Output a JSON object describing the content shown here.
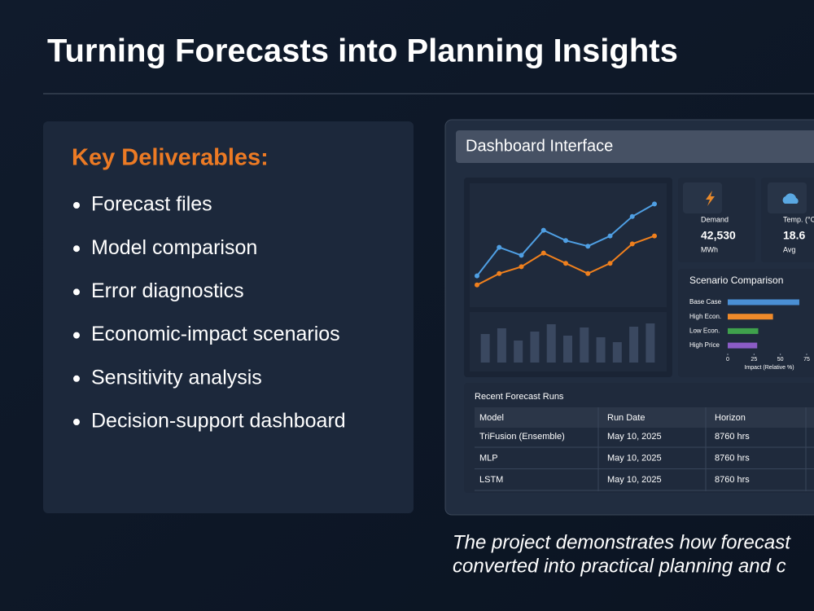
{
  "title": "Turning Forecasts into Planning Insights",
  "deliverables": {
    "heading": "Key Deliverables:",
    "items": [
      "Forecast files",
      "Model comparison",
      "Error diagnostics",
      "Economic-impact scenarios",
      "Sensitivity analysis",
      "Decision-support dashboard"
    ]
  },
  "dashboard": {
    "header": "Dashboard Interface",
    "trend_chart": {
      "type": "line",
      "categories": [
        null,
        null,
        null,
        null,
        null,
        null,
        null,
        null,
        null
      ],
      "series": [
        {
          "color": "#4f9fe3",
          "values": [
            26,
            51,
            44,
            66,
            57,
            52,
            61,
            78,
            89
          ]
        },
        {
          "color": "#f0801d",
          "values": [
            18,
            28,
            34,
            46,
            37,
            28,
            37,
            54,
            61
          ]
        }
      ],
      "ylim": [
        0,
        100
      ]
    },
    "volume_chart": {
      "type": "bar",
      "categories": [
        null,
        null,
        null,
        null,
        null,
        null,
        null,
        null,
        null,
        null,
        null
      ],
      "values": [
        35,
        42,
        27,
        38,
        47,
        33,
        43,
        31,
        25,
        44,
        48
      ],
      "color": "#3a4860",
      "ylim": [
        0,
        60
      ]
    },
    "kpis": [
      {
        "label": "Demand",
        "value": "42,530",
        "unit": "MWh",
        "icon_color": "#e8892a"
      },
      {
        "label": "Temp. (°C",
        "value": "18.6",
        "unit": "Avg",
        "icon_color": "#5aa8e2"
      }
    ],
    "scenario_chart": {
      "type": "bar",
      "orientation": "horizontal",
      "title": "Scenario Comparison",
      "categories": [
        "Base Case",
        "High Econ.",
        "Low Econ.",
        "High Price"
      ],
      "values": [
        68,
        43,
        29,
        28
      ],
      "colors": [
        "#4a8fd4",
        "#ef8a2a",
        "#3fa14c",
        "#8b5cc6"
      ],
      "xlim": [
        0,
        75
      ],
      "xticks": [
        0,
        25,
        50,
        75
      ],
      "xlabel": "Impact (Relative %)"
    },
    "runs_table": {
      "title": "Recent Forecast Runs",
      "columns": [
        "Model",
        "Run Date",
        "Horizon"
      ],
      "rows": [
        [
          "TriFusion (Ensemble)",
          "May 10, 2025",
          "8760 hrs"
        ],
        [
          "MLP",
          "May 10, 2025",
          "8760 hrs"
        ],
        [
          "LSTM",
          "May 10, 2025",
          "8760 hrs"
        ]
      ]
    }
  },
  "caption": [
    "The project demonstrates how forecast",
    "converted into practical planning and c"
  ]
}
